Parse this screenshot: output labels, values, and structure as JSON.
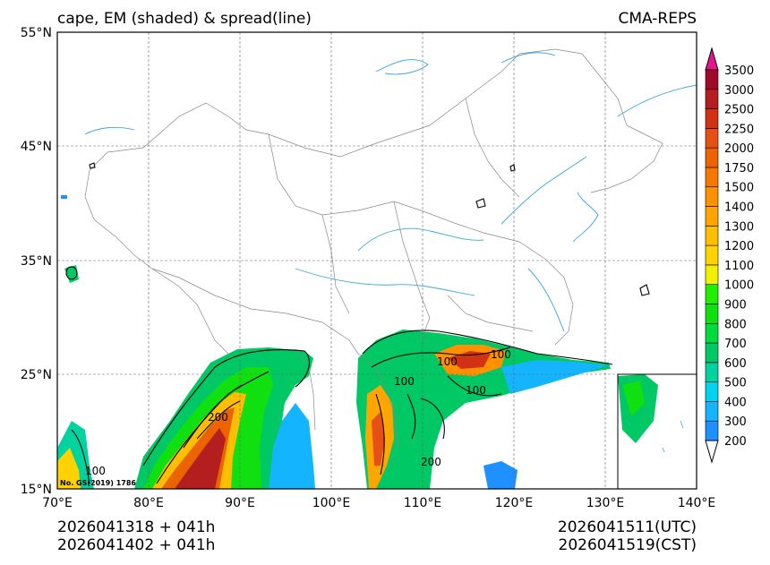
{
  "title_left": "cape, EM (shaded) & spread(line)",
  "title_right": "CMA-REPS",
  "lat_labels": [
    "15°N",
    "25°N",
    "35°N",
    "45°N",
    "55°N"
  ],
  "lon_labels": [
    "70°E",
    "80°E",
    "90°E",
    "100°E",
    "110°E",
    "120°E",
    "130°E",
    "140°E"
  ],
  "colorbar": {
    "levels": [
      "200",
      "300",
      "400",
      "500",
      "600",
      "700",
      "800",
      "900",
      "1000",
      "1100",
      "1200",
      "1300",
      "1400",
      "1500",
      "1750",
      "2000",
      "2250",
      "2500",
      "3000",
      "3500"
    ],
    "colors": [
      "#1e90ff",
      "#14b4ff",
      "#00d2f0",
      "#00d2a0",
      "#00c864",
      "#00dc3c",
      "#10e010",
      "#20f000",
      "#f0f000",
      "#ffd200",
      "#ffbe00",
      "#ffa500",
      "#ff9100",
      "#f57800",
      "#eb6400",
      "#e65014",
      "#d23214",
      "#b41e1e",
      "#a00a28",
      "#c8006e",
      "#e6138c"
    ]
  },
  "contour_labels": [
    "100",
    "100",
    "100",
    "100",
    "200",
    "200",
    "100"
  ],
  "footer": {
    "left_line1": "2026041318  +  041h",
    "left_line2": "2026041402  +  041h",
    "right_line1": "2026041511(UTC)",
    "right_line2": "2026041519(CST)"
  },
  "map_note": "No. GS(2019) 1786"
}
